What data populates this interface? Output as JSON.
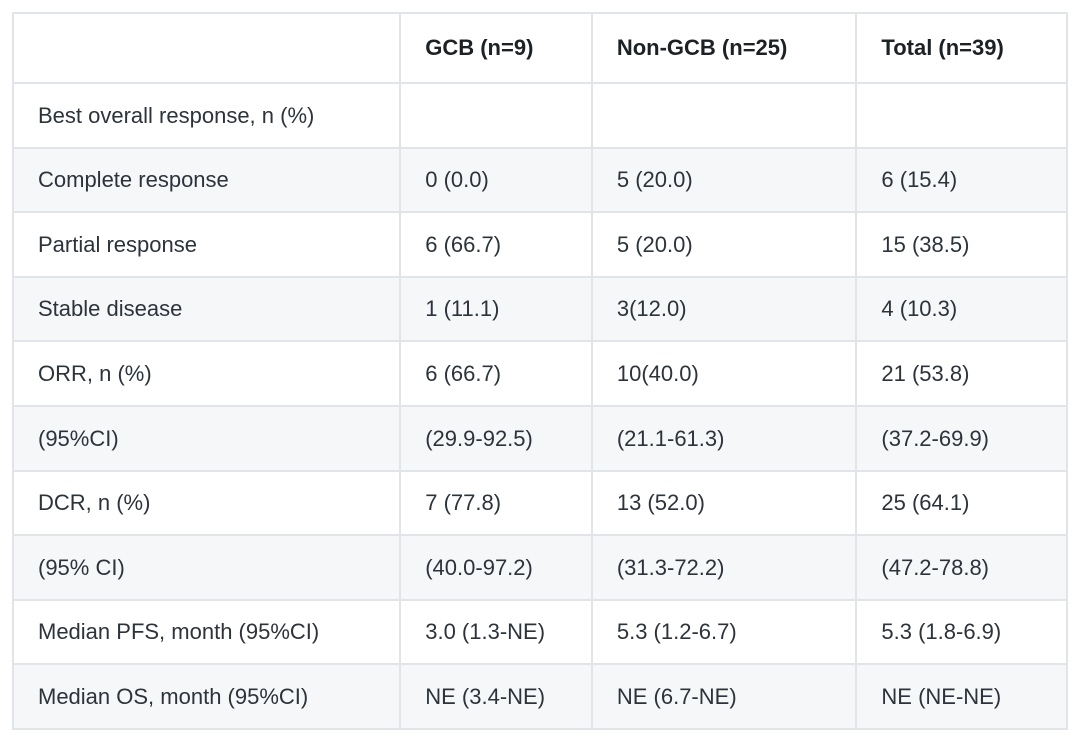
{
  "theme": {
    "border_color": "#e1e4e9",
    "stripe_color": "#f6f7f9",
    "text_color": "#2d333b",
    "header_text_color": "#1c2126",
    "background_color": "#ffffff"
  },
  "table": {
    "columns": [
      "",
      "GCB (n=9)",
      "Non-GCB (n=25)",
      "Total (n=39)"
    ],
    "rows": [
      {
        "label": "Best overall response, n (%)",
        "gcb": "",
        "non_gcb": "",
        "total": ""
      },
      {
        "label": "Complete response",
        "gcb": "0 (0.0)",
        "non_gcb": "5 (20.0)",
        "total": "6 (15.4)"
      },
      {
        "label": "Partial response",
        "gcb": "6 (66.7)",
        "non_gcb": "5 (20.0)",
        "total": "15 (38.5)"
      },
      {
        "label": "Stable disease",
        "gcb": "1 (11.1)",
        "non_gcb": "3(12.0)",
        "total": "4 (10.3)"
      },
      {
        "label": "ORR, n (%)",
        "gcb": "6 (66.7)",
        "non_gcb": "10(40.0)",
        "total": "21 (53.8)"
      },
      {
        "label": "(95%CI)",
        "gcb": "(29.9-92.5)",
        "non_gcb": "(21.1-61.3)",
        "total": "(37.2-69.9)"
      },
      {
        "label": "DCR, n (%)",
        "gcb": "7 (77.8)",
        "non_gcb": "13 (52.0)",
        "total": "25 (64.1)"
      },
      {
        "label": "(95% CI)",
        "gcb": "(40.0-97.2)",
        "non_gcb": "(31.3-72.2)",
        "total": "(47.2-78.8)"
      },
      {
        "label": "Median PFS, month (95%CI)",
        "gcb": "3.0 (1.3-NE)",
        "non_gcb": "5.3 (1.2-6.7)",
        "total": "5.3 (1.8-6.9)"
      },
      {
        "label": "Median OS, month (95%CI)",
        "gcb": "NE (3.4-NE)",
        "non_gcb": "NE (6.7-NE)",
        "total": "NE (NE-NE)"
      }
    ]
  }
}
